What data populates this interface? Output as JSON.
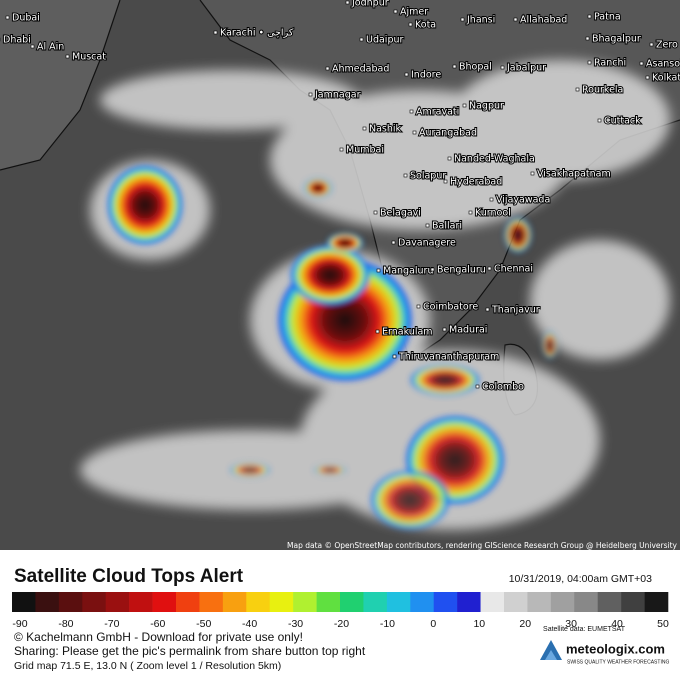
{
  "map": {
    "cities": [
      "Jodhpur",
      "Ajmer",
      "Kota",
      "Jhansi",
      "Allahabad",
      "Patna",
      "Dubai",
      "Dhabi",
      "Al Ain",
      "Muscat",
      "Karachi • کراچی",
      "Udaipur",
      "Bhagalpur",
      "Zero",
      "Ahmedabad",
      "Indore",
      "Bhopal",
      "Jabalpur",
      "Ranchi",
      "Asansol",
      "Kolkat",
      "Jamnagar",
      "Rourkela",
      "Amravati",
      "Nagpur",
      "Nashik",
      "Aurangabad",
      "Cuttack",
      "Mumbai",
      "Nanded-Waghala",
      "Solapur",
      "Hyderabad",
      "Visakhapatnam",
      "Vijayawada",
      "Belagavi",
      "Kurnool",
      "Ballari",
      "Davanagere",
      "Mangaluru",
      "Bengaluru",
      "Chennai",
      "Coimbatore",
      "Thanjavur",
      "Ernakulam",
      "Madurai",
      "Thiruvananthapuram",
      "Colombo"
    ],
    "attribution": "Map data © OpenStreetMap contributors, rendering GIScience Research Group @ Heidelberg University"
  },
  "footer": {
    "title": "Satellite Cloud Tops Alert",
    "datetime": "10/31/2019, 04:00am GMT+03",
    "scale": {
      "ticks": [
        -90,
        -80,
        -70,
        -60,
        -50,
        -40,
        -30,
        -20,
        -10,
        0,
        10,
        20,
        30,
        40,
        50
      ],
      "colors": [
        "#111111",
        "#3a1010",
        "#5a0f0f",
        "#7a1010",
        "#9a1010",
        "#c01010",
        "#e01010",
        "#f04010",
        "#f87010",
        "#f8a010",
        "#f8d010",
        "#e8f010",
        "#b0f030",
        "#60e040",
        "#20d070",
        "#20d0b0",
        "#20c0e0",
        "#2090f0",
        "#2050f0",
        "#2020d0",
        "#e8e8e8",
        "#d0d0d0",
        "#b8b8b8",
        "#a0a0a0",
        "#888888",
        "#606060",
        "#404040",
        "#181818"
      ]
    },
    "copyright": "© Kachelmann GmbH - Download for private use only!",
    "sharing": "Sharing: Please get the pic's permalink from share button top right",
    "grid": "Grid map 71.5 E, 13.0 N ( Zoom level 1 / Resolution 5km)",
    "source": "Satellite data: EUMETSAT",
    "brand": "meteologix.com",
    "tagline": "SWISS QUALITY WEATHER FORECASTING"
  }
}
